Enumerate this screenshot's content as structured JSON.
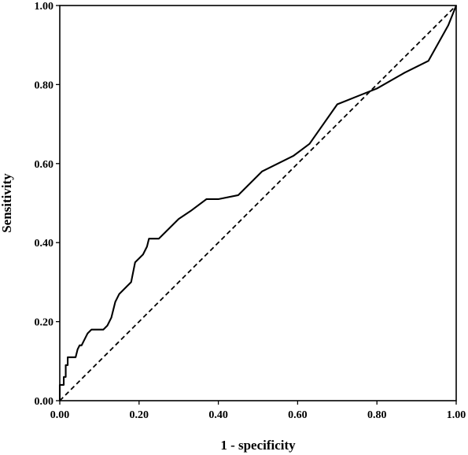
{
  "chart_data": {
    "type": "line",
    "xlabel": "1 - specificity",
    "ylabel": "Sensitivity",
    "xlim": [
      0,
      1
    ],
    "ylim": [
      0,
      1
    ],
    "grid": false,
    "legend": "none",
    "x_ticks": [
      "0.00",
      "0.20",
      "0.40",
      "0.60",
      "0.80",
      "1.00"
    ],
    "y_ticks": [
      "0.00",
      "0.20",
      "0.40",
      "0.60",
      "0.80",
      "1.00"
    ],
    "series": [
      {
        "style": "solid",
        "color": "#000000",
        "points": [
          [
            0.0,
            0.0
          ],
          [
            0.0,
            0.04
          ],
          [
            0.01,
            0.04
          ],
          [
            0.01,
            0.06
          ],
          [
            0.015,
            0.06
          ],
          [
            0.015,
            0.09
          ],
          [
            0.02,
            0.09
          ],
          [
            0.02,
            0.11
          ],
          [
            0.03,
            0.11
          ],
          [
            0.04,
            0.11
          ],
          [
            0.045,
            0.13
          ],
          [
            0.05,
            0.14
          ],
          [
            0.055,
            0.14
          ],
          [
            0.06,
            0.15
          ],
          [
            0.065,
            0.16
          ],
          [
            0.07,
            0.17
          ],
          [
            0.08,
            0.18
          ],
          [
            0.095,
            0.18
          ],
          [
            0.11,
            0.18
          ],
          [
            0.12,
            0.19
          ],
          [
            0.13,
            0.21
          ],
          [
            0.14,
            0.25
          ],
          [
            0.15,
            0.27
          ],
          [
            0.17,
            0.29
          ],
          [
            0.18,
            0.3
          ],
          [
            0.19,
            0.35
          ],
          [
            0.2,
            0.36
          ],
          [
            0.21,
            0.37
          ],
          [
            0.22,
            0.39
          ],
          [
            0.225,
            0.41
          ],
          [
            0.25,
            0.41
          ],
          [
            0.27,
            0.43
          ],
          [
            0.3,
            0.46
          ],
          [
            0.33,
            0.48
          ],
          [
            0.37,
            0.51
          ],
          [
            0.4,
            0.51
          ],
          [
            0.45,
            0.52
          ],
          [
            0.51,
            0.58
          ],
          [
            0.55,
            0.6
          ],
          [
            0.59,
            0.62
          ],
          [
            0.63,
            0.65
          ],
          [
            0.7,
            0.75
          ],
          [
            0.75,
            0.77
          ],
          [
            0.8,
            0.79
          ],
          [
            0.87,
            0.83
          ],
          [
            0.93,
            0.86
          ],
          [
            0.98,
            0.95
          ],
          [
            1.0,
            1.0
          ]
        ]
      },
      {
        "style": "dashed",
        "color": "#000000",
        "points": [
          [
            0,
            0
          ],
          [
            1,
            1
          ]
        ]
      }
    ]
  }
}
